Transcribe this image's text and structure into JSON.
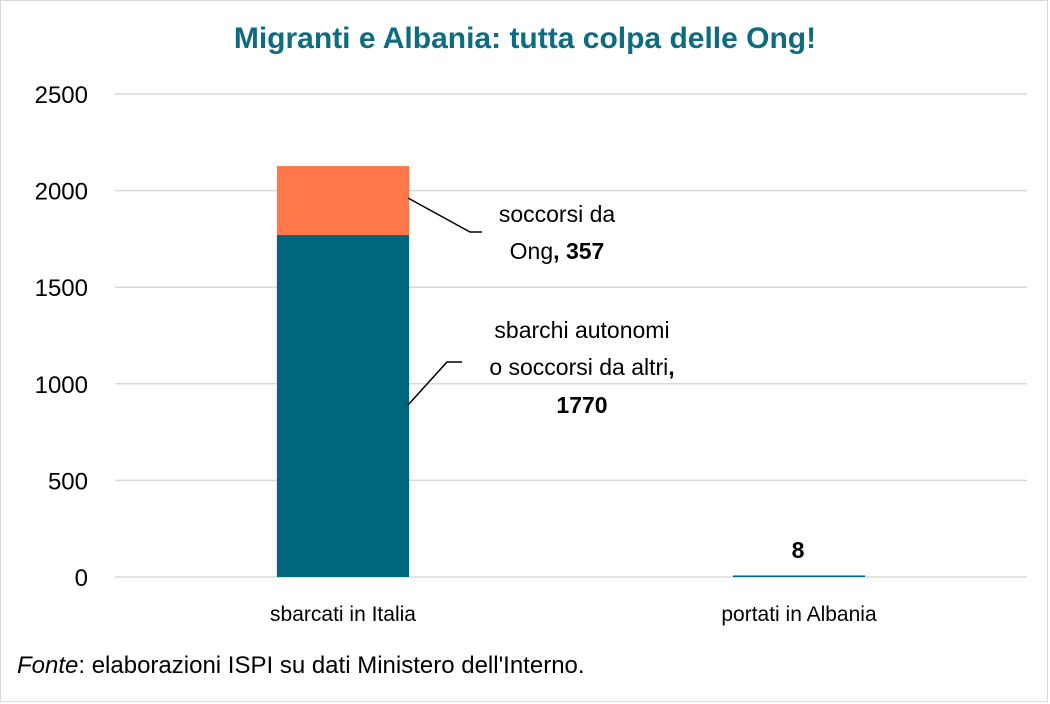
{
  "chart_data": {
    "type": "bar",
    "stacked": true,
    "title": "Migranti e Albania: tutta colpa delle Ong!",
    "categories": [
      "sbarcati in Italia",
      "portati in Albania"
    ],
    "series": [
      {
        "name": "sbarchi autonomi o soccorsi da altri",
        "values": [
          1770,
          8
        ],
        "color": "#00667d"
      },
      {
        "name": "soccorsi da Ong",
        "values": [
          357,
          0
        ],
        "color": "#ff7849"
      }
    ],
    "yticks": [
      0,
      500,
      1000,
      1500,
      2000,
      2500
    ],
    "ylim": [
      0,
      2500
    ],
    "grid": true,
    "annotations": {
      "ong_line1": "soccorsi da",
      "ong_line2": "Ong",
      "ong_value": "357",
      "auto_line1": "sbarchi autonomi",
      "auto_line2": "o soccorsi da altri",
      "auto_value": "1770",
      "albania_value": "8"
    }
  },
  "source": {
    "label": "Fonte",
    "text": ": elaborazioni ISPI su dati Ministero dell'Interno."
  }
}
